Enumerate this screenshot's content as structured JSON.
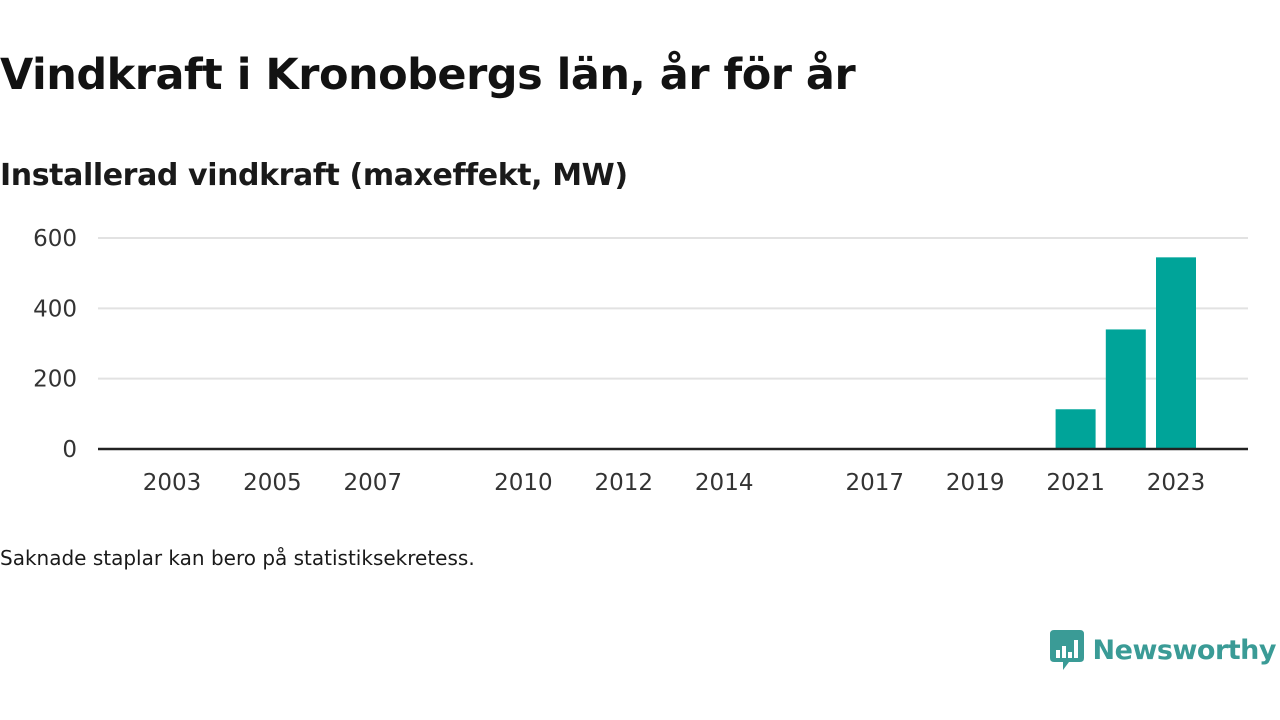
{
  "header": {
    "title": "Vindkraft i Kronobergs län, år för år",
    "subtitle": "Installerad vindkraft (maxeffekt, MW)"
  },
  "footer": {
    "note": "Saknade staplar kan bero på statistiksekretess.",
    "brand": "Newsworthy"
  },
  "colors": {
    "bar": "#00a499",
    "brand": "#3a9b96",
    "grid": "#e2e2e2",
    "axis": "#222222"
  },
  "chart_data": {
    "type": "bar",
    "title": "Vindkraft i Kronobergs län, år för år",
    "subtitle": "Installerad vindkraft (maxeffekt, MW)",
    "xlabel": "",
    "ylabel": "",
    "ylim": [
      0,
      600
    ],
    "yticks": [
      0,
      200,
      400,
      600
    ],
    "grid": true,
    "categories": [
      "2003",
      "2004",
      "2005",
      "2006",
      "2007",
      "2008",
      "2009",
      "2010",
      "2011",
      "2012",
      "2013",
      "2014",
      "2015",
      "2016",
      "2017",
      "2018",
      "2019",
      "2020",
      "2021",
      "2022",
      "2023"
    ],
    "xticks": [
      "2003",
      "2005",
      "2007",
      "2010",
      "2012",
      "2014",
      "2017",
      "2019",
      "2021",
      "2023"
    ],
    "series": [
      {
        "values": [
          null,
          null,
          null,
          null,
          null,
          null,
          null,
          null,
          null,
          null,
          null,
          null,
          null,
          null,
          null,
          null,
          null,
          null,
          113,
          340,
          545
        ]
      }
    ]
  }
}
